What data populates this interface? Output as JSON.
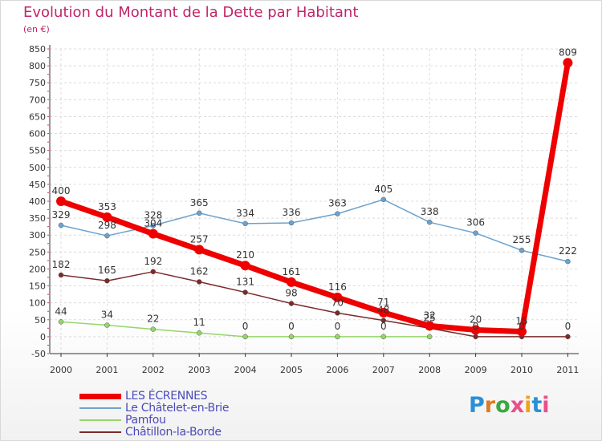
{
  "title": "Evolution du Montant de la Dette par Habitant",
  "subtitle": "(en €)",
  "logo": {
    "text": "Proxiti",
    "colors": [
      "#2b8fd6",
      "#e07a1f",
      "#3aa843",
      "#e84f8a",
      "#f0a020",
      "#2b8fd6",
      "#e84f8a"
    ]
  },
  "chart_data": {
    "type": "line",
    "title": "Evolution du Montant de la Dette par Habitant",
    "ylabel": "(en €)",
    "xlabel": "",
    "categories": [
      "2000",
      "2001",
      "2002",
      "2003",
      "2004",
      "2005",
      "2006",
      "2007",
      "2008",
      "2009",
      "2010",
      "2011"
    ],
    "ylim": [
      -50,
      850
    ],
    "yticks": [
      "-50",
      "0",
      "50",
      "100",
      "150",
      "200",
      "250",
      "300",
      "350",
      "400",
      "450",
      "500",
      "550",
      "600",
      "650",
      "700",
      "750",
      "800",
      "850"
    ],
    "grid": true,
    "legend_position": "bottom-left",
    "series": [
      {
        "name": "LES ÉCRENNES",
        "color": "#ee0000",
        "emphasis": true,
        "values": [
          400,
          353,
          304,
          257,
          210,
          161,
          116,
          71,
          32,
          20,
          15,
          809
        ],
        "labels": [
          "400",
          "353",
          "304",
          "257",
          "210",
          "161",
          "116",
          "71",
          "32",
          "20",
          "15",
          "809"
        ]
      },
      {
        "name": "Le Châtelet-en-Brie",
        "color": "#6ea2cc",
        "values": [
          329,
          298,
          328,
          365,
          334,
          336,
          363,
          405,
          338,
          306,
          255,
          222
        ],
        "labels": [
          "329",
          "298",
          "328",
          "365",
          "334",
          "336",
          "363",
          "405",
          "338",
          "306",
          "255",
          "222"
        ]
      },
      {
        "name": "Pamfou",
        "color": "#94d66a",
        "values": [
          44,
          34,
          22,
          11,
          0,
          0,
          0,
          0,
          0,
          null,
          null,
          null
        ],
        "labels": [
          "44",
          "34",
          "22",
          "11",
          "0",
          "0",
          "0",
          "0",
          "",
          "",
          "",
          ""
        ]
      },
      {
        "name": "Châtillon-la-Borde",
        "color": "#7a2a2a",
        "values": [
          182,
          165,
          192,
          162,
          131,
          98,
          70,
          48,
          25,
          0,
          0,
          0
        ],
        "labels": [
          "182",
          "165",
          "192",
          "162",
          "131",
          "98",
          "70",
          "48",
          "25",
          "0",
          "0",
          "0"
        ]
      }
    ]
  }
}
